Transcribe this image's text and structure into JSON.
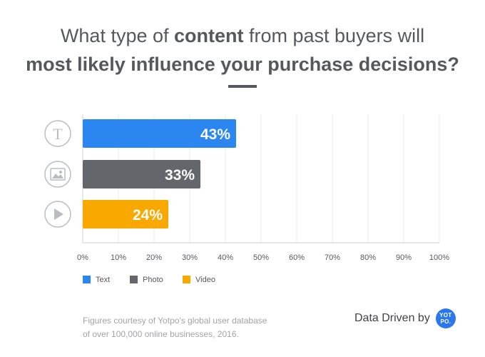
{
  "title": {
    "line1_pre": "What type of ",
    "line1_bold": "content",
    "line1_post": " from past buyers will",
    "line2": "most likely influence your purchase decisions?"
  },
  "chart_data": {
    "type": "bar",
    "orientation": "horizontal",
    "categories": [
      "Text",
      "Photo",
      "Video"
    ],
    "values": [
      43,
      33,
      24
    ],
    "value_labels": [
      "43%",
      "33%",
      "24%"
    ],
    "category_icons": [
      "text-icon",
      "photo-icon",
      "video-icon"
    ],
    "colors": [
      "#2b86f0",
      "#63666b",
      "#f9a800"
    ],
    "xlim": [
      0,
      100
    ],
    "xticks": [
      0,
      10,
      20,
      30,
      40,
      50,
      60,
      70,
      80,
      90,
      100
    ],
    "xtick_labels": [
      "0%",
      "10%",
      "20%",
      "30%",
      "40%",
      "50%",
      "60%",
      "70%",
      "80%",
      "90%",
      "100%"
    ],
    "grid": true,
    "legend_position": "bottom-left"
  },
  "legend": {
    "items": [
      {
        "label": "Text",
        "color": "#2b86f0"
      },
      {
        "label": "Photo",
        "color": "#63666b"
      },
      {
        "label": "Video",
        "color": "#f9a800"
      }
    ]
  },
  "footnote": {
    "line1": "Figures courtesy of Yotpo's global user database",
    "line2": "of over 100,000 online businesses, 2016."
  },
  "brand": {
    "text": "Data Driven by",
    "logo_line1": "YOT",
    "logo_line2": "PO."
  }
}
